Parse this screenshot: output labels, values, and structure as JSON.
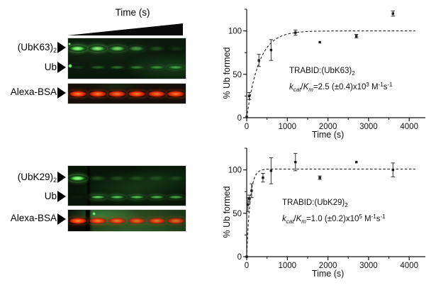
{
  "gel_panels": [
    {
      "id": "ubk63",
      "time_wedge": {
        "label": "Time (s)"
      },
      "lanes": 6,
      "rows": [
        {
          "label": "(UbK63)",
          "label_sub": "2",
          "kind": "diub",
          "intensities": [
            1.0,
            0.92,
            0.78,
            0.5,
            0.2,
            0.1
          ]
        },
        {
          "label": "Ub",
          "label_sub": "",
          "kind": "ub",
          "intensities": [
            0.12,
            0.3,
            0.38,
            0.42,
            0.5,
            0.6
          ]
        }
      ],
      "loading_row": {
        "label": "Alexa-BSA",
        "intensities": [
          1.0,
          0.97,
          0.95,
          0.97,
          0.93,
          0.95
        ]
      }
    },
    {
      "id": "ubk29",
      "time_wedge": null,
      "lanes": 6,
      "rows": [
        {
          "label": "(UbK29)",
          "label_sub": "2",
          "kind": "diub",
          "intensities": [
            1.0,
            0.2,
            0.17,
            0.16,
            0.14,
            0.13
          ]
        },
        {
          "label": "Ub",
          "label_sub": "",
          "kind": "ub",
          "intensities": [
            0.04,
            0.85,
            0.78,
            0.75,
            0.7,
            0.65
          ]
        }
      ],
      "loading_row": {
        "label": "Alexa-BSA",
        "intensities": [
          1.0,
          0.95,
          0.88,
          0.82,
          0.85,
          0.8
        ]
      }
    }
  ],
  "chart_data": [
    {
      "type": "scatter",
      "xlabel": "Time (s)",
      "ylabel": "% Ub formed",
      "xlim": [
        0,
        4400
      ],
      "ylim": [
        0,
        125
      ],
      "x_ticks": [
        0,
        1000,
        2000,
        3000,
        4000
      ],
      "x_minor_ticks": [
        500,
        1500,
        2500,
        3500
      ],
      "y_ticks": [
        0,
        50,
        100
      ],
      "y_minor_ticks": [
        25,
        75,
        125
      ],
      "grid": false,
      "legend": "none",
      "series": [
        {
          "name": "TRABID:(UbK63)2",
          "points": [
            {
              "x": 0,
              "y": 1,
              "err": 0
            },
            {
              "x": 60,
              "y": 25,
              "err": 4
            },
            {
              "x": 300,
              "y": 66,
              "err": 7
            },
            {
              "x": 600,
              "y": 78,
              "err": 12
            },
            {
              "x": 1200,
              "y": 98,
              "err": 3
            },
            {
              "x": 1800,
              "y": 87,
              "err": 0
            },
            {
              "x": 2700,
              "y": 94,
              "err": 2
            },
            {
              "x": 3600,
              "y": 120,
              "err": 3
            }
          ]
        }
      ],
      "fit_curve": {
        "style": "dashed",
        "model": "y = A*(1-exp(-k*t))",
        "A": 100,
        "k": 0.0033
      },
      "annotation": {
        "line1": "TRABID:(UbK63)",
        "line1_sub": "2",
        "k_italic": "k",
        "k_sub": "cat",
        "slash": "/",
        "km_italic": "K",
        "km_sub": "m",
        "value": "=2.5 (±0.4)x10",
        "value_exp": "3",
        "unit_m": " M",
        "unit_m_exp": "-1",
        "unit_s": "s",
        "unit_s_exp": "-1"
      }
    },
    {
      "type": "scatter",
      "xlabel": "Time (s)",
      "ylabel": "% Ub formed",
      "xlim": [
        0,
        4400
      ],
      "ylim": [
        0,
        125
      ],
      "x_ticks": [
        0,
        1000,
        2000,
        3000,
        4000
      ],
      "x_minor_ticks": [
        500,
        1500,
        2500,
        3500
      ],
      "y_ticks": [
        0,
        50,
        100
      ],
      "y_minor_ticks": [
        25,
        75,
        125
      ],
      "grid": false,
      "legend": "none",
      "series": [
        {
          "name": "TRABID:(UbK29)2",
          "points": [
            {
              "x": 0,
              "y": 0,
              "err": 0
            },
            {
              "x": 30,
              "y": 60,
              "err": 8
            },
            {
              "x": 60,
              "y": 67,
              "err": 4
            },
            {
              "x": 120,
              "y": 76,
              "err": 8
            },
            {
              "x": 400,
              "y": 91,
              "err": 5
            },
            {
              "x": 600,
              "y": 99,
              "err": 15
            },
            {
              "x": 1200,
              "y": 109,
              "err": 10
            },
            {
              "x": 1800,
              "y": 91,
              "err": 2
            },
            {
              "x": 2700,
              "y": 109,
              "err": 0
            },
            {
              "x": 3600,
              "y": 100,
              "err": 8
            }
          ]
        }
      ],
      "fit_curve": {
        "style": "dashed",
        "model": "y = A*(1-exp(-k*t))",
        "A": 101,
        "k": 0.012
      },
      "annotation": {
        "line1": "TRABID:(UbK29)",
        "line1_sub": "2",
        "k_italic": "k",
        "k_sub": "cat",
        "slash": "/",
        "km_italic": "K",
        "km_sub": "m",
        "value": "=1.0 (±0.2)x10",
        "value_exp": "5",
        "unit_m": " M",
        "unit_m_exp": "-1",
        "unit_s": "s",
        "unit_s_exp": "-1"
      }
    }
  ]
}
